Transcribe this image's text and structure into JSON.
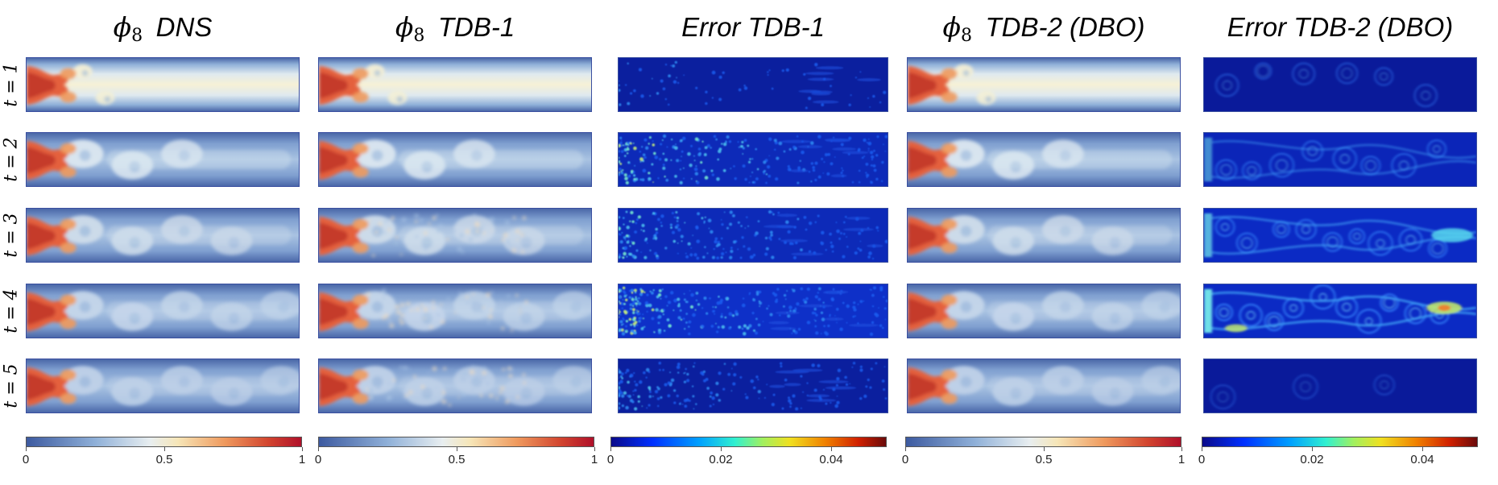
{
  "figure": {
    "columns": [
      {
        "symbol": "ϕ",
        "subscript": "8",
        "label": "DNS",
        "kind": "field"
      },
      {
        "symbol": "ϕ",
        "subscript": "8",
        "label": "TDB-1",
        "kind": "field"
      },
      {
        "symbol": "",
        "subscript": "",
        "label": "Error  TDB-1",
        "kind": "error1"
      },
      {
        "symbol": "ϕ",
        "subscript": "8",
        "label": "TDB-2 (DBO)",
        "kind": "field"
      },
      {
        "symbol": "",
        "subscript": "",
        "label": "Error TDB-2 (DBO)",
        "kind": "error2"
      }
    ],
    "row_labels": [
      "t = 1",
      "t = 2",
      "t = 3",
      "t = 4",
      "t = 5"
    ]
  },
  "chart_data": {
    "type": "heatmap",
    "title": "",
    "panels_layout": "5 rows (time) x 5 columns (method)",
    "rows": [
      1,
      2,
      3,
      4,
      5
    ],
    "row_variable": "t",
    "column_titles": [
      "ϕ8 DNS",
      "ϕ8 TDB-1",
      "Error  TDB-1",
      "ϕ8 TDB-2 (DBO)",
      "Error TDB-2 (DBO)"
    ],
    "colorbars": [
      {
        "column": "ϕ8 DNS",
        "range": [
          0,
          1
        ],
        "ticks": [
          0,
          0.5,
          1
        ],
        "tick_labels": [
          "0",
          "0.5",
          "1"
        ],
        "colormap": "blue-white-red"
      },
      {
        "column": "ϕ8 TDB-1",
        "range": [
          0,
          1
        ],
        "ticks": [
          0,
          0.5,
          1
        ],
        "tick_labels": [
          "0",
          "0.5",
          "1"
        ],
        "colormap": "blue-white-red"
      },
      {
        "column": "Error  TDB-1",
        "range": [
          0,
          0.05
        ],
        "ticks": [
          0,
          0.02,
          0.04
        ],
        "tick_labels": [
          "0",
          "0.02",
          "0.04"
        ],
        "colormap": "jet"
      },
      {
        "column": "ϕ8 TDB-2 (DBO)",
        "range": [
          0,
          1
        ],
        "ticks": [
          0,
          0.5,
          1
        ],
        "tick_labels": [
          "0",
          "0.5",
          "1"
        ],
        "colormap": "blue-white-red"
      },
      {
        "column": "Error TDB-2 (DBO)",
        "range": [
          0,
          0.05
        ],
        "ticks": [
          0,
          0.02,
          0.04
        ],
        "tick_labels": [
          "0",
          "0.02",
          "0.04"
        ],
        "colormap": "jet"
      }
    ],
    "xlabel": "",
    "ylabel": ""
  }
}
